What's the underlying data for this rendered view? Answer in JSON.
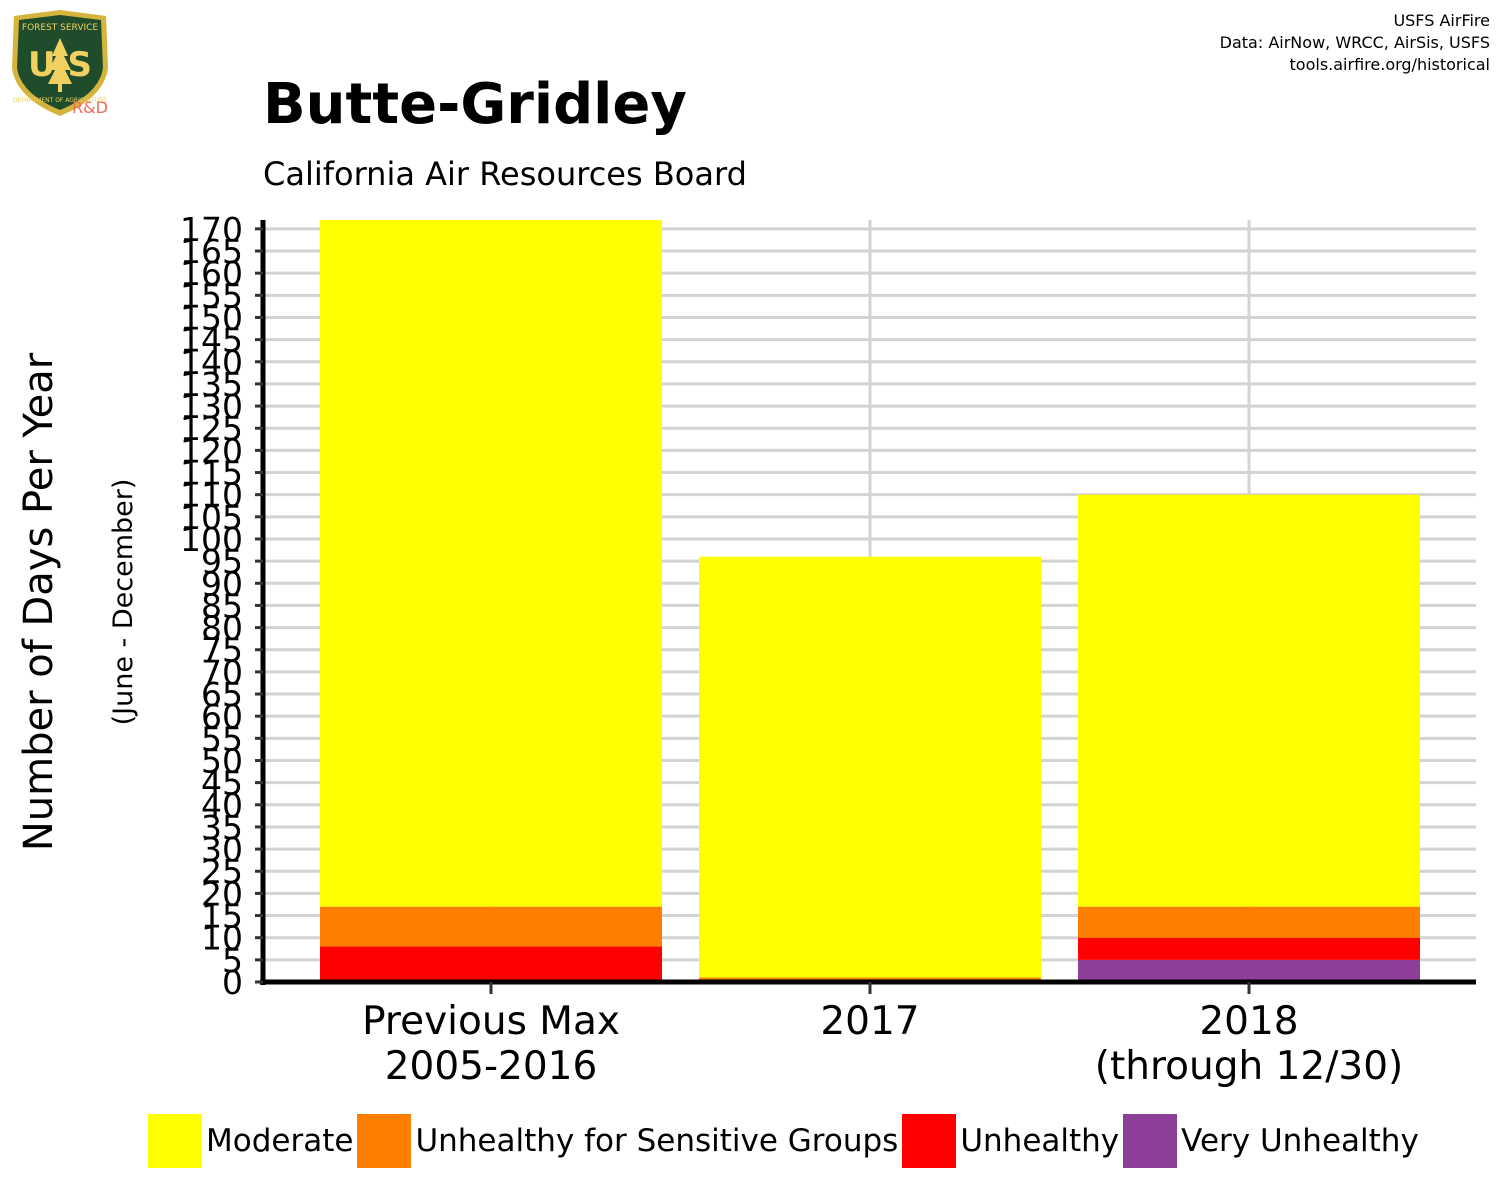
{
  "header": {
    "title": "Butte-Gridley",
    "subtitle": "California Air Resources Board",
    "credits": [
      "USFS AirFire",
      "Data: AirNow, WRCC, AirSis, USFS",
      "tools.airfire.org/historical"
    ]
  },
  "logo": {
    "top_text": "FOREST SERVICE",
    "letters": "U S",
    "bottom_text": "DEPARTMENT OF AGRICULTURE",
    "badge": "R&D",
    "colors": {
      "shield": "#1f4d2b",
      "rim": "#d4b43c",
      "text": "#f0d060"
    }
  },
  "chart_data": {
    "type": "bar",
    "stacked": true,
    "ylabel": "Number of Days Per Year",
    "ylabel_sub": "(June - December)",
    "ylim": [
      0,
      172
    ],
    "yticks": [
      0,
      5,
      10,
      15,
      20,
      25,
      30,
      35,
      40,
      45,
      50,
      55,
      60,
      65,
      70,
      75,
      80,
      85,
      90,
      95,
      100,
      105,
      110,
      115,
      120,
      125,
      130,
      135,
      140,
      145,
      150,
      155,
      160,
      165,
      170
    ],
    "grid": true,
    "legend_position": "bottom",
    "categories": [
      {
        "line1": "Previous Max",
        "line2": "2005-2016"
      },
      {
        "line1": "2017",
        "line2": ""
      },
      {
        "line1": "2018",
        "line2": "(through 12/30)"
      }
    ],
    "series": [
      {
        "name": "Very Unhealthy",
        "color": "#8e3f99",
        "values": [
          0,
          0,
          5
        ]
      },
      {
        "name": "Unhealthy",
        "color": "#ff0000",
        "values": [
          8,
          0,
          5
        ]
      },
      {
        "name": "Unhealthy for Sensitive Groups",
        "color": "#ff7e00",
        "values": [
          9,
          1,
          7
        ]
      },
      {
        "name": "Moderate",
        "color": "#ffff00",
        "values": [
          155,
          95,
          93
        ]
      }
    ],
    "legend_order": [
      "Moderate",
      "Unhealthy for Sensitive Groups",
      "Unhealthy",
      "Very Unhealthy"
    ]
  }
}
